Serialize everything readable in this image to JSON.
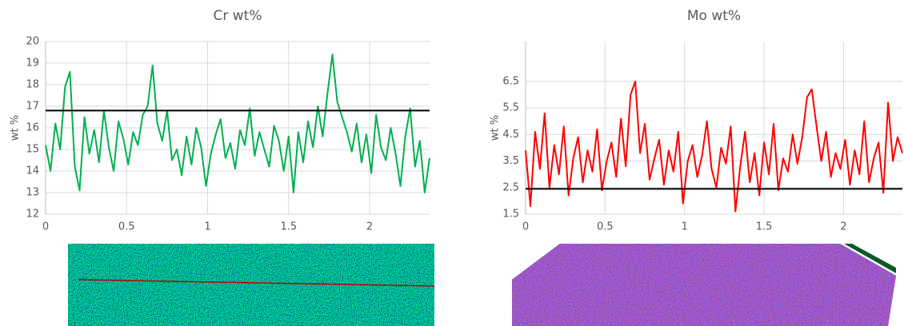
{
  "chart_data": [
    {
      "type": "line",
      "title": "Cr wt%",
      "y_label": "wt %",
      "color": "#00b050",
      "grid": true,
      "xlim": [
        0,
        2.37
      ],
      "xticks": [
        0,
        0.5,
        1,
        1.5,
        2
      ],
      "ylim": [
        12,
        20
      ],
      "yticks": [
        12,
        13,
        14,
        15,
        16,
        17,
        18,
        19,
        20
      ],
      "reference_line": 16.8,
      "reference_color": "#000000",
      "x": [
        0,
        0.03,
        0.06,
        0.09,
        0.12,
        0.15,
        0.18,
        0.21,
        0.24,
        0.27,
        0.3,
        0.33,
        0.36,
        0.39,
        0.42,
        0.45,
        0.48,
        0.51,
        0.54,
        0.57,
        0.6,
        0.63,
        0.66,
        0.69,
        0.72,
        0.75,
        0.78,
        0.81,
        0.84,
        0.87,
        0.9,
        0.93,
        0.96,
        0.99,
        1.02,
        1.05,
        1.08,
        1.11,
        1.14,
        1.17,
        1.2,
        1.23,
        1.26,
        1.29,
        1.32,
        1.35,
        1.38,
        1.41,
        1.44,
        1.47,
        1.5,
        1.53,
        1.56,
        1.59,
        1.62,
        1.65,
        1.68,
        1.71,
        1.74,
        1.77,
        1.8,
        1.83,
        1.86,
        1.89,
        1.92,
        1.95,
        1.98,
        2.01,
        2.04,
        2.07,
        2.1,
        2.13,
        2.16,
        2.19,
        2.22,
        2.25,
        2.28,
        2.31,
        2.34,
        2.37
      ],
      "values": [
        15.2,
        14.0,
        16.2,
        15.0,
        17.9,
        18.6,
        14.2,
        13.1,
        16.5,
        14.8,
        15.9,
        14.4,
        16.8,
        15.1,
        14.0,
        16.3,
        15.5,
        14.3,
        15.8,
        15.2,
        16.6,
        17.0,
        18.9,
        16.2,
        15.4,
        16.8,
        14.5,
        15.0,
        13.8,
        15.6,
        14.3,
        16.0,
        15.1,
        13.3,
        14.8,
        15.7,
        16.4,
        14.6,
        15.3,
        14.1,
        15.9,
        15.2,
        16.9,
        14.7,
        15.8,
        15.0,
        14.2,
        16.1,
        15.4,
        14.0,
        15.6,
        13.0,
        15.8,
        14.4,
        16.3,
        15.1,
        17.0,
        15.6,
        17.6,
        19.4,
        17.2,
        16.5,
        15.8,
        14.9,
        16.2,
        14.4,
        15.7,
        13.9,
        16.6,
        15.1,
        14.5,
        16.0,
        14.8,
        13.3,
        15.6,
        16.9,
        14.2,
        15.4,
        13.0,
        14.6
      ]
    },
    {
      "type": "line",
      "title": "Mo wt%",
      "y_label": "wt %",
      "color": "#ff0000",
      "grid": true,
      "xlim": [
        0,
        2.37
      ],
      "xticks": [
        0,
        0.5,
        1,
        1.5,
        2
      ],
      "ylim": [
        1.5,
        8
      ],
      "yticks": [
        1.5,
        2.5,
        3.5,
        4.5,
        5.5,
        6.5
      ],
      "reference_line": 2.45,
      "reference_color": "#000000",
      "x": [
        0,
        0.03,
        0.06,
        0.09,
        0.12,
        0.15,
        0.18,
        0.21,
        0.24,
        0.27,
        0.3,
        0.33,
        0.36,
        0.39,
        0.42,
        0.45,
        0.48,
        0.51,
        0.54,
        0.57,
        0.6,
        0.63,
        0.66,
        0.69,
        0.72,
        0.75,
        0.78,
        0.81,
        0.84,
        0.87,
        0.9,
        0.93,
        0.96,
        0.99,
        1.02,
        1.05,
        1.08,
        1.11,
        1.14,
        1.17,
        1.2,
        1.23,
        1.26,
        1.29,
        1.32,
        1.35,
        1.38,
        1.41,
        1.44,
        1.47,
        1.5,
        1.53,
        1.56,
        1.59,
        1.62,
        1.65,
        1.68,
        1.71,
        1.74,
        1.77,
        1.8,
        1.83,
        1.86,
        1.89,
        1.92,
        1.95,
        1.98,
        2.01,
        2.04,
        2.07,
        2.1,
        2.13,
        2.16,
        2.19,
        2.22,
        2.25,
        2.28,
        2.31,
        2.34,
        2.37
      ],
      "values": [
        3.9,
        1.8,
        4.6,
        3.2,
        5.3,
        2.5,
        4.1,
        3.0,
        4.8,
        2.2,
        3.6,
        4.4,
        2.7,
        3.9,
        3.1,
        4.7,
        2.4,
        3.5,
        4.2,
        2.9,
        5.1,
        3.3,
        6.0,
        6.5,
        3.8,
        4.9,
        2.8,
        3.6,
        4.3,
        2.6,
        3.9,
        3.1,
        4.6,
        1.9,
        3.5,
        4.1,
        2.9,
        3.7,
        5.0,
        3.2,
        2.5,
        4.0,
        3.4,
        4.8,
        1.6,
        3.3,
        4.6,
        2.7,
        3.8,
        2.2,
        4.2,
        3.0,
        4.9,
        2.4,
        3.6,
        3.1,
        4.5,
        3.4,
        4.4,
        5.9,
        6.2,
        4.8,
        3.5,
        4.6,
        2.9,
        3.8,
        3.2,
        4.3,
        2.6,
        3.9,
        3.0,
        5.0,
        2.7,
        3.6,
        4.2,
        2.3,
        5.7,
        3.5,
        4.4,
        3.8
      ]
    }
  ]
}
